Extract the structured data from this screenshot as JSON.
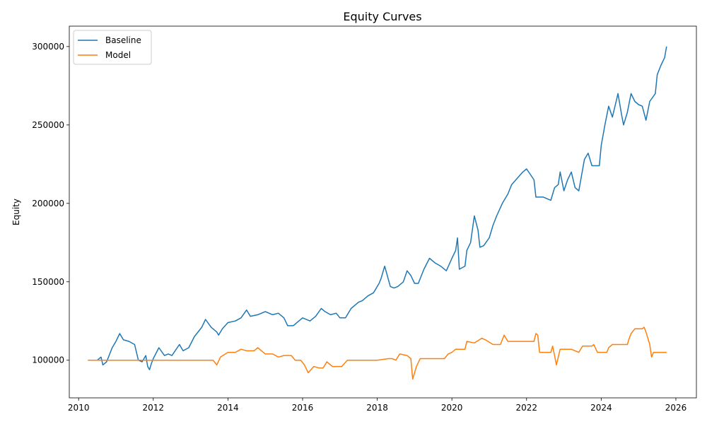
{
  "chart_data": {
    "type": "line",
    "title": "Equity Curves",
    "xlabel": "",
    "ylabel": "Equity",
    "xlim": [
      2009.75,
      2026.55
    ],
    "ylim": [
      76000,
      313000
    ],
    "grid": false,
    "legend_position": "top-left",
    "x_ticks": [
      2010,
      2012,
      2014,
      2016,
      2018,
      2020,
      2022,
      2024,
      2026
    ],
    "x_tick_labels": [
      "2010",
      "2012",
      "2014",
      "2016",
      "2018",
      "2020",
      "2022",
      "2024",
      "2026"
    ],
    "y_ticks": [
      100000,
      150000,
      200000,
      250000,
      300000
    ],
    "y_tick_labels": [
      "100000",
      "150000",
      "200000",
      "250000",
      "300000"
    ],
    "series": [
      {
        "name": "Baseline",
        "color": "#1f77b4",
        "x": [
          2010.25,
          2010.5,
          2010.6,
          2010.65,
          2010.75,
          2010.9,
          2011.0,
          2011.1,
          2011.2,
          2011.35,
          2011.5,
          2011.6,
          2011.7,
          2011.8,
          2011.85,
          2011.9,
          2011.95,
          2012.0,
          2012.15,
          2012.3,
          2012.4,
          2012.5,
          2012.7,
          2012.8,
          2012.95,
          2013.1,
          2013.3,
          2013.4,
          2013.55,
          2013.7,
          2013.75,
          2013.85,
          2014.0,
          2014.2,
          2014.35,
          2014.5,
          2014.6,
          2014.8,
          2015.0,
          2015.2,
          2015.35,
          2015.5,
          2015.6,
          2015.75,
          2015.9,
          2016.0,
          2016.2,
          2016.35,
          2016.5,
          2016.6,
          2016.75,
          2016.9,
          2017.0,
          2017.15,
          2017.3,
          2017.5,
          2017.6,
          2017.75,
          2017.9,
          2018.0,
          2018.05,
          2018.1,
          2018.2,
          2018.35,
          2018.45,
          2018.55,
          2018.7,
          2018.8,
          2018.9,
          2019.0,
          2019.1,
          2019.25,
          2019.4,
          2019.55,
          2019.7,
          2019.85,
          2020.0,
          2020.1,
          2020.15,
          2020.2,
          2020.35,
          2020.4,
          2020.5,
          2020.6,
          2020.7,
          2020.75,
          2020.85,
          2021.0,
          2021.1,
          2021.2,
          2021.35,
          2021.5,
          2021.6,
          2021.75,
          2021.9,
          2022.0,
          2022.2,
          2022.25,
          2022.45,
          2022.65,
          2022.75,
          2022.85,
          2022.9,
          2023.0,
          2023.1,
          2023.2,
          2023.3,
          2023.4,
          2023.55,
          2023.65,
          2023.75,
          2023.95,
          2024.0,
          2024.1,
          2024.2,
          2024.3,
          2024.45,
          2024.55,
          2024.6,
          2024.7,
          2024.8,
          2024.9,
          2025.0,
          2025.1,
          2025.2,
          2025.3,
          2025.45,
          2025.5,
          2025.6,
          2025.7,
          2025.75
        ],
        "values": [
          100000,
          100000,
          102000,
          97000,
          99000,
          108000,
          112000,
          117000,
          113000,
          112000,
          110000,
          100000,
          99000,
          103000,
          96000,
          94000,
          98000,
          101000,
          108000,
          103000,
          104000,
          103000,
          110000,
          106000,
          108000,
          115000,
          121000,
          126000,
          121000,
          118000,
          116000,
          120000,
          124000,
          125000,
          127000,
          132000,
          128000,
          129000,
          131000,
          129000,
          130000,
          127000,
          122000,
          122000,
          125000,
          127000,
          125000,
          128000,
          133000,
          131000,
          129000,
          130000,
          127000,
          127000,
          133000,
          137000,
          138000,
          141000,
          143000,
          147000,
          149000,
          152000,
          160000,
          147000,
          146000,
          147000,
          150000,
          157000,
          154000,
          149000,
          149000,
          158000,
          165000,
          162000,
          160000,
          157000,
          165000,
          170000,
          178000,
          158000,
          160000,
          170000,
          175000,
          192000,
          183000,
          172000,
          173000,
          178000,
          186000,
          192000,
          200000,
          206000,
          212000,
          216000,
          220000,
          222000,
          215000,
          204000,
          204000,
          202000,
          210000,
          212000,
          220000,
          208000,
          215000,
          220000,
          210000,
          208000,
          228000,
          232000,
          224000,
          224000,
          237000,
          250000,
          262000,
          255000,
          270000,
          256000,
          250000,
          258000,
          270000,
          265000,
          263000,
          262000,
          253000,
          265000,
          270000,
          282000,
          288000,
          293000,
          300000
        ]
      },
      {
        "name": "Model",
        "color": "#ff7f0e",
        "x": [
          2010.25,
          2011.0,
          2012.0,
          2013.0,
          2013.5,
          2013.6,
          2013.7,
          2013.8,
          2014.0,
          2014.2,
          2014.35,
          2014.5,
          2014.6,
          2014.7,
          2014.8,
          2015.0,
          2015.2,
          2015.35,
          2015.5,
          2015.6,
          2015.7,
          2015.8,
          2015.95,
          2016.05,
          2016.15,
          2016.3,
          2016.45,
          2016.55,
          2016.65,
          2016.8,
          2016.95,
          2017.05,
          2017.2,
          2017.5,
          2017.8,
          2018.0,
          2018.3,
          2018.4,
          2018.5,
          2018.6,
          2018.8,
          2018.9,
          2018.95,
          2019.05,
          2019.15,
          2019.5,
          2019.8,
          2019.9,
          2020.0,
          2020.1,
          2020.35,
          2020.4,
          2020.6,
          2020.8,
          2020.9,
          2021.1,
          2021.3,
          2021.4,
          2021.5,
          2021.8,
          2022.0,
          2022.2,
          2022.25,
          2022.3,
          2022.35,
          2022.45,
          2022.65,
          2022.7,
          2022.75,
          2022.8,
          2022.85,
          2022.9,
          2023.0,
          2023.2,
          2023.3,
          2023.4,
          2023.5,
          2023.65,
          2023.75,
          2023.8,
          2023.9,
          2024.0,
          2024.15,
          2024.2,
          2024.3,
          2024.45,
          2024.6,
          2024.7,
          2024.75,
          2024.8,
          2024.9,
          2025.0,
          2025.1,
          2025.15,
          2025.2,
          2025.3,
          2025.35,
          2025.4,
          2025.6,
          2025.75
        ],
        "values": [
          100000,
          100000,
          100000,
          100000,
          100000,
          100000,
          97000,
          102000,
          105000,
          105000,
          107000,
          106000,
          106000,
          106000,
          108000,
          104000,
          104000,
          102000,
          103000,
          103000,
          103000,
          100000,
          100000,
          97000,
          92000,
          96000,
          95000,
          95000,
          99000,
          96000,
          96000,
          96000,
          100000,
          100000,
          100000,
          100000,
          101000,
          101000,
          100000,
          104000,
          103000,
          101000,
          88000,
          96000,
          101000,
          101000,
          101000,
          104000,
          105000,
          107000,
          107000,
          112000,
          111000,
          114000,
          113000,
          110000,
          110000,
          116000,
          112000,
          112000,
          112000,
          112000,
          117000,
          116000,
          105000,
          105000,
          105000,
          109000,
          103000,
          97000,
          102000,
          107000,
          107000,
          107000,
          106000,
          105000,
          109000,
          109000,
          109000,
          110000,
          105000,
          105000,
          105000,
          108000,
          110000,
          110000,
          110000,
          110000,
          114000,
          117000,
          120000,
          120000,
          120000,
          121000,
          118000,
          110000,
          102000,
          105000,
          105000,
          105000
        ]
      }
    ]
  }
}
